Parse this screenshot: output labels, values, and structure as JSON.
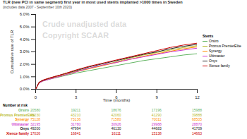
{
  "chart_data": {
    "type": "line",
    "title": "TLR (new PCI in same segment) first year in most used stents implanted >1000 times in Sweden",
    "subtitle": "(includes data 2007 - September 10th 2020)",
    "annotations": [
      "Crude unadjusted data",
      "Copyright SCAAR"
    ],
    "x_label": "Time (months)",
    "y_label": "Cumulative rate of TLR",
    "x": [
      0,
      0.25,
      0.5,
      1,
      2,
      3,
      4,
      5,
      6,
      7,
      8,
      9,
      10,
      11,
      12
    ],
    "xlim": [
      0,
      12
    ],
    "xticks": [
      0,
      3,
      6,
      9,
      12
    ],
    "ylim": [
      0,
      6
    ],
    "yticks": [
      {
        "value": 0,
        "label": "0.0%"
      },
      {
        "value": 1,
        "label": "1.0%"
      },
      {
        "value": 2,
        "label": "2.0%"
      },
      {
        "value": 3,
        "label": "3.0%"
      },
      {
        "value": 4,
        "label": "4.0%"
      },
      {
        "value": 5,
        "label": "5.0%"
      },
      {
        "value": 6,
        "label": "6.0%"
      }
    ],
    "legend_title": "Stents",
    "legend": "right",
    "risk_table": {
      "title": "Number at risk",
      "times": [
        0,
        3,
        6,
        9,
        12
      ]
    },
    "series": [
      {
        "name": "Orsiro",
        "color": "#5fb35f",
        "values": [
          0,
          0.5,
          0.65,
          0.8,
          1.05,
          1.3,
          1.5,
          1.7,
          1.9,
          2.1,
          2.3,
          2.45,
          2.6,
          2.75,
          2.85
        ],
        "at_risk": [
          20580,
          19211,
          18676,
          17196,
          15988
        ]
      },
      {
        "name": "Promus PremierElite",
        "color": "#b5b82a",
        "values": [
          0,
          0.55,
          0.7,
          0.85,
          1.15,
          1.45,
          1.7,
          1.95,
          2.2,
          2.5,
          2.75,
          2.95,
          3.15,
          3.35,
          3.5
        ],
        "at_risk": [
          45230,
          43210,
          42060,
          41290,
          39888
        ]
      },
      {
        "name": "Synergy",
        "color": "#ff8c00",
        "values": [
          0,
          0.5,
          0.65,
          0.82,
          1.1,
          1.4,
          1.65,
          1.9,
          2.15,
          2.4,
          2.65,
          2.85,
          3.05,
          3.25,
          3.4
        ],
        "at_risk": [
          75128,
          73136,
          71580,
          70011,
          68505
        ]
      },
      {
        "name": "Ultimaster",
        "color": "#cc33cc",
        "values": [
          0,
          0.5,
          0.65,
          0.8,
          1.1,
          1.4,
          1.7,
          1.95,
          2.15,
          2.4,
          2.6,
          2.8,
          3.0,
          3.15,
          3.3
        ],
        "at_risk": [
          32195,
          31780,
          30926,
          29988,
          28870
        ]
      },
      {
        "name": "Onyx",
        "color": "#222222",
        "values": [
          0,
          0.55,
          0.7,
          0.88,
          1.2,
          1.5,
          1.8,
          2.05,
          2.3,
          2.55,
          2.8,
          3.0,
          3.25,
          3.45,
          3.6
        ],
        "at_risk": [
          49200,
          47994,
          46130,
          44683,
          41709
        ]
      },
      {
        "name": "Xience family",
        "color": "#cc0000",
        "values": [
          0,
          0.55,
          0.72,
          0.9,
          1.2,
          1.55,
          1.85,
          2.1,
          2.35,
          2.6,
          2.85,
          3.1,
          3.35,
          3.55,
          3.7
        ],
        "at_risk": [
          17026,
          16841,
          16111,
          15138,
          14663
        ]
      }
    ]
  }
}
